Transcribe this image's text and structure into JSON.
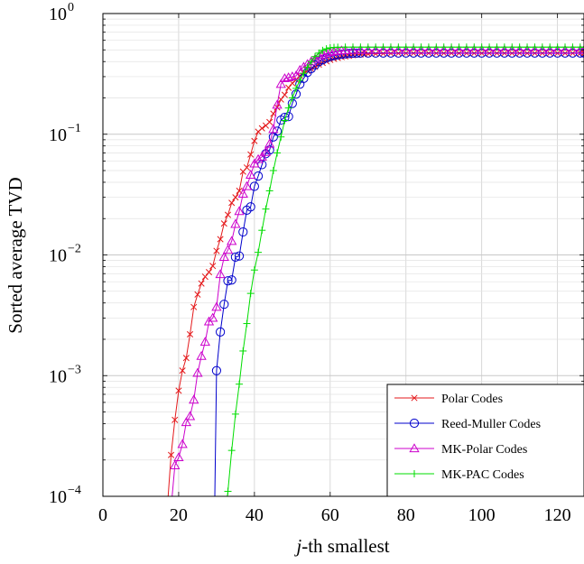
{
  "chart_data": {
    "type": "line",
    "xlabel_prefix": "j",
    "xlabel_suffix": "-th smallest",
    "ylabel": "Sorted average TVD",
    "xlim": [
      0,
      127
    ],
    "ylim": [
      0.0001,
      1
    ],
    "yscale": "log",
    "grid": true,
    "legend_position": "bottom-right",
    "x_ticks": [
      0,
      20,
      40,
      60,
      80,
      100,
      120
    ],
    "x_tick_labels": [
      "0",
      "20",
      "40",
      "60",
      "80",
      "100",
      "120"
    ],
    "y_ticks": [
      {
        "value": 1,
        "base": "10",
        "exp": "0"
      },
      {
        "value": 0.1,
        "base": "10",
        "exp": "−1"
      },
      {
        "value": 0.01,
        "base": "10",
        "exp": "−2"
      },
      {
        "value": 0.001,
        "base": "10",
        "exp": "−3"
      },
      {
        "value": 0.0001,
        "base": "10",
        "exp": "−4"
      }
    ],
    "series": [
      {
        "name": "Polar Codes",
        "color": "#e41a1c",
        "marker": "x",
        "points": [
          [
            17,
            8e-05
          ],
          [
            18,
            0.00022
          ],
          [
            19,
            0.00043
          ],
          [
            20,
            0.00075
          ],
          [
            21,
            0.0011
          ],
          [
            22,
            0.0014
          ],
          [
            23,
            0.0022
          ],
          [
            24,
            0.0037
          ],
          [
            25,
            0.0047
          ],
          [
            26,
            0.0058
          ],
          [
            27,
            0.0066
          ],
          [
            28,
            0.0072
          ],
          [
            29,
            0.0081
          ],
          [
            30,
            0.0108
          ],
          [
            31,
            0.0135
          ],
          [
            32,
            0.0182
          ],
          [
            33,
            0.0215
          ],
          [
            34,
            0.027
          ],
          [
            35,
            0.03
          ],
          [
            36,
            0.034
          ],
          [
            37,
            0.049
          ],
          [
            38,
            0.053
          ],
          [
            39,
            0.068
          ],
          [
            40,
            0.088
          ],
          [
            41,
            0.105
          ],
          [
            42,
            0.112
          ],
          [
            43,
            0.118
          ],
          [
            44,
            0.126
          ],
          [
            45,
            0.148
          ],
          [
            46,
            0.167
          ],
          [
            47,
            0.194
          ],
          [
            48,
            0.212
          ],
          [
            49,
            0.243
          ],
          [
            50,
            0.265
          ],
          [
            51,
            0.282
          ],
          [
            52,
            0.306
          ],
          [
            53,
            0.322
          ],
          [
            54,
            0.335
          ],
          [
            55,
            0.347
          ],
          [
            56,
            0.362
          ],
          [
            57,
            0.378
          ],
          [
            58,
            0.39
          ],
          [
            59,
            0.402
          ],
          [
            60,
            0.413
          ],
          [
            61,
            0.421
          ],
          [
            62,
            0.429
          ],
          [
            63,
            0.436
          ],
          [
            64,
            0.442
          ],
          [
            65,
            0.447
          ],
          [
            66,
            0.451
          ],
          [
            67,
            0.455
          ],
          [
            68,
            0.458
          ],
          [
            69,
            0.46
          ],
          [
            70,
            0.462
          ],
          [
            72,
            0.464
          ],
          [
            74,
            0.466
          ],
          [
            76,
            0.467
          ],
          [
            78,
            0.468
          ],
          [
            80,
            0.469
          ],
          [
            82,
            0.469
          ],
          [
            84,
            0.469
          ],
          [
            86,
            0.469
          ],
          [
            88,
            0.469
          ],
          [
            90,
            0.469
          ],
          [
            92,
            0.469
          ],
          [
            94,
            0.469
          ],
          [
            96,
            0.469
          ],
          [
            98,
            0.469
          ],
          [
            100,
            0.469
          ],
          [
            102,
            0.469
          ],
          [
            104,
            0.469
          ],
          [
            106,
            0.469
          ],
          [
            108,
            0.469
          ],
          [
            110,
            0.469
          ],
          [
            112,
            0.469
          ],
          [
            114,
            0.469
          ],
          [
            116,
            0.469
          ],
          [
            118,
            0.469
          ],
          [
            120,
            0.469
          ],
          [
            122,
            0.469
          ],
          [
            124,
            0.469
          ],
          [
            126,
            0.469
          ],
          [
            127,
            0.469
          ]
        ]
      },
      {
        "name": "Reed-Muller Codes",
        "color": "#0000cc",
        "marker": "circle",
        "points": [
          [
            29.5,
            8e-05
          ],
          [
            30,
            0.0011
          ],
          [
            31,
            0.0023
          ],
          [
            32,
            0.0039
          ],
          [
            33,
            0.0061
          ],
          [
            34,
            0.0062
          ],
          [
            35,
            0.0096
          ],
          [
            36,
            0.0098
          ],
          [
            37,
            0.0155
          ],
          [
            38,
            0.0235
          ],
          [
            39,
            0.025
          ],
          [
            40,
            0.037
          ],
          [
            41,
            0.045
          ],
          [
            42,
            0.056
          ],
          [
            43,
            0.069
          ],
          [
            44,
            0.074
          ],
          [
            45,
            0.095
          ],
          [
            46,
            0.106
          ],
          [
            47,
            0.131
          ],
          [
            48,
            0.138
          ],
          [
            49,
            0.14
          ],
          [
            50,
            0.18
          ],
          [
            51,
            0.215
          ],
          [
            52,
            0.26
          ],
          [
            53,
            0.29
          ],
          [
            54,
            0.325
          ],
          [
            55,
            0.35
          ],
          [
            56,
            0.375
          ],
          [
            57,
            0.398
          ],
          [
            58,
            0.414
          ],
          [
            59,
            0.428
          ],
          [
            60,
            0.44
          ],
          [
            61,
            0.448
          ],
          [
            62,
            0.455
          ],
          [
            63,
            0.46
          ],
          [
            64,
            0.464
          ],
          [
            65,
            0.467
          ],
          [
            66,
            0.469
          ],
          [
            67,
            0.47
          ],
          [
            68,
            0.471
          ],
          [
            70,
            0.471
          ],
          [
            72,
            0.471
          ],
          [
            74,
            0.471
          ],
          [
            76,
            0.471
          ],
          [
            78,
            0.471
          ],
          [
            80,
            0.471
          ],
          [
            82,
            0.471
          ],
          [
            84,
            0.471
          ],
          [
            86,
            0.471
          ],
          [
            88,
            0.471
          ],
          [
            90,
            0.471
          ],
          [
            92,
            0.471
          ],
          [
            94,
            0.471
          ],
          [
            96,
            0.471
          ],
          [
            98,
            0.471
          ],
          [
            100,
            0.471
          ],
          [
            102,
            0.471
          ],
          [
            104,
            0.471
          ],
          [
            106,
            0.471
          ],
          [
            108,
            0.471
          ],
          [
            110,
            0.471
          ],
          [
            112,
            0.471
          ],
          [
            114,
            0.471
          ],
          [
            116,
            0.471
          ],
          [
            118,
            0.471
          ],
          [
            120,
            0.471
          ],
          [
            122,
            0.471
          ],
          [
            124,
            0.471
          ],
          [
            126,
            0.471
          ],
          [
            127,
            0.471
          ]
        ]
      },
      {
        "name": "MK-Polar Codes",
        "color": "#cc00cc",
        "marker": "triangle",
        "points": [
          [
            18,
            8e-05
          ],
          [
            19,
            0.00018
          ],
          [
            20,
            0.00021
          ],
          [
            21,
            0.00027
          ],
          [
            22,
            0.00041
          ],
          [
            23,
            0.00046
          ],
          [
            24,
            0.00063
          ],
          [
            25,
            0.00105
          ],
          [
            26,
            0.00145
          ],
          [
            27,
            0.0019
          ],
          [
            28,
            0.0028
          ],
          [
            29,
            0.003
          ],
          [
            30,
            0.0037
          ],
          [
            31,
            0.0069
          ],
          [
            32,
            0.0096
          ],
          [
            33,
            0.011
          ],
          [
            34,
            0.013
          ],
          [
            35,
            0.018
          ],
          [
            36,
            0.023
          ],
          [
            37,
            0.032
          ],
          [
            38,
            0.037
          ],
          [
            39,
            0.046
          ],
          [
            40,
            0.057
          ],
          [
            41,
            0.062
          ],
          [
            42,
            0.065
          ],
          [
            43,
            0.071
          ],
          [
            44,
            0.083
          ],
          [
            45,
            0.11
          ],
          [
            46,
            0.175
          ],
          [
            47,
            0.26
          ],
          [
            48,
            0.29
          ],
          [
            49,
            0.295
          ],
          [
            50,
            0.3
          ],
          [
            51,
            0.305
          ],
          [
            52,
            0.34
          ],
          [
            53,
            0.36
          ],
          [
            54,
            0.38
          ],
          [
            55,
            0.4
          ],
          [
            56,
            0.42
          ],
          [
            57,
            0.44
          ],
          [
            58,
            0.455
          ],
          [
            59,
            0.468
          ],
          [
            60,
            0.478
          ],
          [
            61,
            0.485
          ],
          [
            62,
            0.49
          ],
          [
            63,
            0.493
          ],
          [
            64,
            0.495
          ],
          [
            66,
            0.497
          ],
          [
            68,
            0.498
          ],
          [
            70,
            0.498
          ],
          [
            72,
            0.498
          ],
          [
            74,
            0.498
          ],
          [
            76,
            0.498
          ],
          [
            78,
            0.498
          ],
          [
            80,
            0.498
          ],
          [
            82,
            0.498
          ],
          [
            84,
            0.498
          ],
          [
            86,
            0.498
          ],
          [
            88,
            0.498
          ],
          [
            90,
            0.498
          ],
          [
            92,
            0.498
          ],
          [
            94,
            0.498
          ],
          [
            96,
            0.498
          ],
          [
            98,
            0.498
          ],
          [
            100,
            0.498
          ],
          [
            102,
            0.498
          ],
          [
            104,
            0.498
          ],
          [
            106,
            0.498
          ],
          [
            108,
            0.498
          ],
          [
            110,
            0.498
          ],
          [
            112,
            0.498
          ],
          [
            114,
            0.498
          ],
          [
            116,
            0.498
          ],
          [
            118,
            0.498
          ],
          [
            120,
            0.498
          ],
          [
            122,
            0.498
          ],
          [
            124,
            0.498
          ],
          [
            126,
            0.498
          ],
          [
            127,
            0.498
          ]
        ]
      },
      {
        "name": "MK-PAC Codes",
        "color": "#00dd00",
        "marker": "plus",
        "points": [
          [
            32.5,
            8e-05
          ],
          [
            33,
            0.00011
          ],
          [
            34,
            0.00024
          ],
          [
            35,
            0.00048
          ],
          [
            36,
            0.00085
          ],
          [
            37,
            0.0016
          ],
          [
            38,
            0.0027
          ],
          [
            39,
            0.0048
          ],
          [
            40,
            0.0075
          ],
          [
            41,
            0.0105
          ],
          [
            42,
            0.016
          ],
          [
            43,
            0.024
          ],
          [
            44,
            0.034
          ],
          [
            45,
            0.05
          ],
          [
            46,
            0.07
          ],
          [
            47,
            0.095
          ],
          [
            48,
            0.13
          ],
          [
            49,
            0.165
          ],
          [
            50,
            0.2
          ],
          [
            51,
            0.24
          ],
          [
            52,
            0.28
          ],
          [
            53,
            0.32
          ],
          [
            54,
            0.36
          ],
          [
            55,
            0.4
          ],
          [
            56,
            0.44
          ],
          [
            57,
            0.47
          ],
          [
            58,
            0.495
          ],
          [
            59,
            0.51
          ],
          [
            60,
            0.52
          ],
          [
            61,
            0.524
          ],
          [
            62,
            0.526
          ],
          [
            64,
            0.527
          ],
          [
            66,
            0.527
          ],
          [
            68,
            0.527
          ],
          [
            70,
            0.527
          ],
          [
            72,
            0.527
          ],
          [
            74,
            0.527
          ],
          [
            76,
            0.527
          ],
          [
            78,
            0.527
          ],
          [
            80,
            0.527
          ],
          [
            82,
            0.527
          ],
          [
            84,
            0.527
          ],
          [
            86,
            0.527
          ],
          [
            88,
            0.527
          ],
          [
            90,
            0.527
          ],
          [
            92,
            0.527
          ],
          [
            94,
            0.527
          ],
          [
            96,
            0.527
          ],
          [
            98,
            0.527
          ],
          [
            100,
            0.527
          ],
          [
            102,
            0.527
          ],
          [
            104,
            0.527
          ],
          [
            106,
            0.527
          ],
          [
            108,
            0.527
          ],
          [
            110,
            0.527
          ],
          [
            112,
            0.527
          ],
          [
            114,
            0.527
          ],
          [
            116,
            0.527
          ],
          [
            118,
            0.527
          ],
          [
            120,
            0.527
          ],
          [
            122,
            0.527
          ],
          [
            124,
            0.527
          ],
          [
            126,
            0.527
          ],
          [
            127,
            0.527
          ]
        ]
      }
    ]
  }
}
